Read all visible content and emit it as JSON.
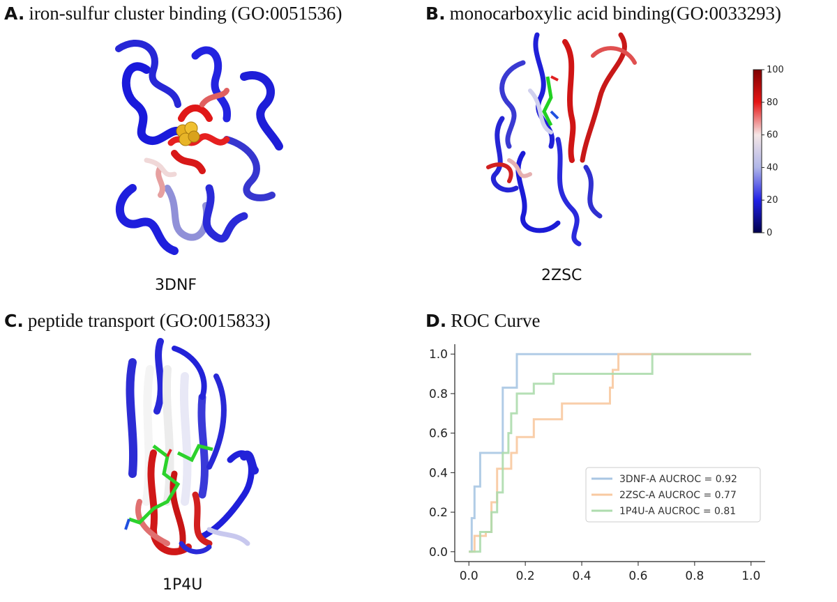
{
  "panels": {
    "a": {
      "letter": "A",
      "title": "iron-sulfur cluster binding (GO:0051536)",
      "pdb": "3DNF"
    },
    "b": {
      "letter": "B",
      "title": "monocarboxylic acid binding(GO:0033293)",
      "pdb": "2ZSC"
    },
    "c": {
      "letter": "C",
      "title": "peptide transport (GO:0015833)",
      "pdb": "1P4U"
    },
    "d": {
      "letter": "D",
      "title": "ROC Curve"
    }
  },
  "colorbar": {
    "ticks": [
      "0",
      "20",
      "40",
      "60",
      "80",
      "100"
    ],
    "colors": [
      "#00004c",
      "#2121e6",
      "#b0b6e8",
      "#f5e6e6",
      "#e61515",
      "#7f0000"
    ]
  },
  "colors": {
    "series1": "#a9c6e3",
    "series2": "#f8c9a0",
    "series3": "#addcad"
  },
  "chart_data": {
    "type": "line",
    "title": "ROC Curve",
    "xlabel": "",
    "ylabel": "",
    "xlim": [
      -0.05,
      1.05
    ],
    "ylim": [
      -0.05,
      1.05
    ],
    "xticks": [
      "0.0",
      "0.2",
      "0.4",
      "0.6",
      "0.8",
      "1.0"
    ],
    "yticks": [
      "0.0",
      "0.2",
      "0.4",
      "0.6",
      "0.8",
      "1.0"
    ],
    "grid": false,
    "legend": "center-right",
    "series": [
      {
        "name": "3DNF-A AUCROC = 0.92",
        "x": [
          0,
          0.01,
          0.01,
          0.02,
          0.02,
          0.04,
          0.04,
          0.12,
          0.12,
          0.17,
          0.17,
          1.0
        ],
        "y": [
          0,
          0,
          0.17,
          0.17,
          0.33,
          0.33,
          0.5,
          0.5,
          0.83,
          0.83,
          1.0,
          1.0
        ]
      },
      {
        "name": "2ZSC-A AUCROC = 0.77",
        "x": [
          0,
          0.02,
          0.02,
          0.06,
          0.06,
          0.08,
          0.08,
          0.1,
          0.1,
          0.15,
          0.15,
          0.17,
          0.17,
          0.23,
          0.23,
          0.33,
          0.33,
          0.5,
          0.5,
          0.51,
          0.51,
          0.53,
          0.53,
          1.0
        ],
        "y": [
          0,
          0,
          0.08,
          0.08,
          0.1,
          0.1,
          0.25,
          0.25,
          0.42,
          0.42,
          0.5,
          0.5,
          0.58,
          0.58,
          0.67,
          0.67,
          0.75,
          0.75,
          0.83,
          0.83,
          0.92,
          0.92,
          1.0,
          1.0
        ]
      },
      {
        "name": "1P4U-A AUCROC = 0.81",
        "x": [
          0,
          0.04,
          0.04,
          0.08,
          0.08,
          0.1,
          0.1,
          0.12,
          0.12,
          0.14,
          0.14,
          0.15,
          0.15,
          0.17,
          0.17,
          0.23,
          0.23,
          0.3,
          0.3,
          0.65,
          0.65,
          1.0
        ],
        "y": [
          0,
          0,
          0.1,
          0.1,
          0.2,
          0.2,
          0.3,
          0.3,
          0.5,
          0.5,
          0.6,
          0.6,
          0.7,
          0.7,
          0.8,
          0.8,
          0.85,
          0.85,
          0.9,
          0.9,
          1.0,
          1.0
        ]
      }
    ]
  }
}
